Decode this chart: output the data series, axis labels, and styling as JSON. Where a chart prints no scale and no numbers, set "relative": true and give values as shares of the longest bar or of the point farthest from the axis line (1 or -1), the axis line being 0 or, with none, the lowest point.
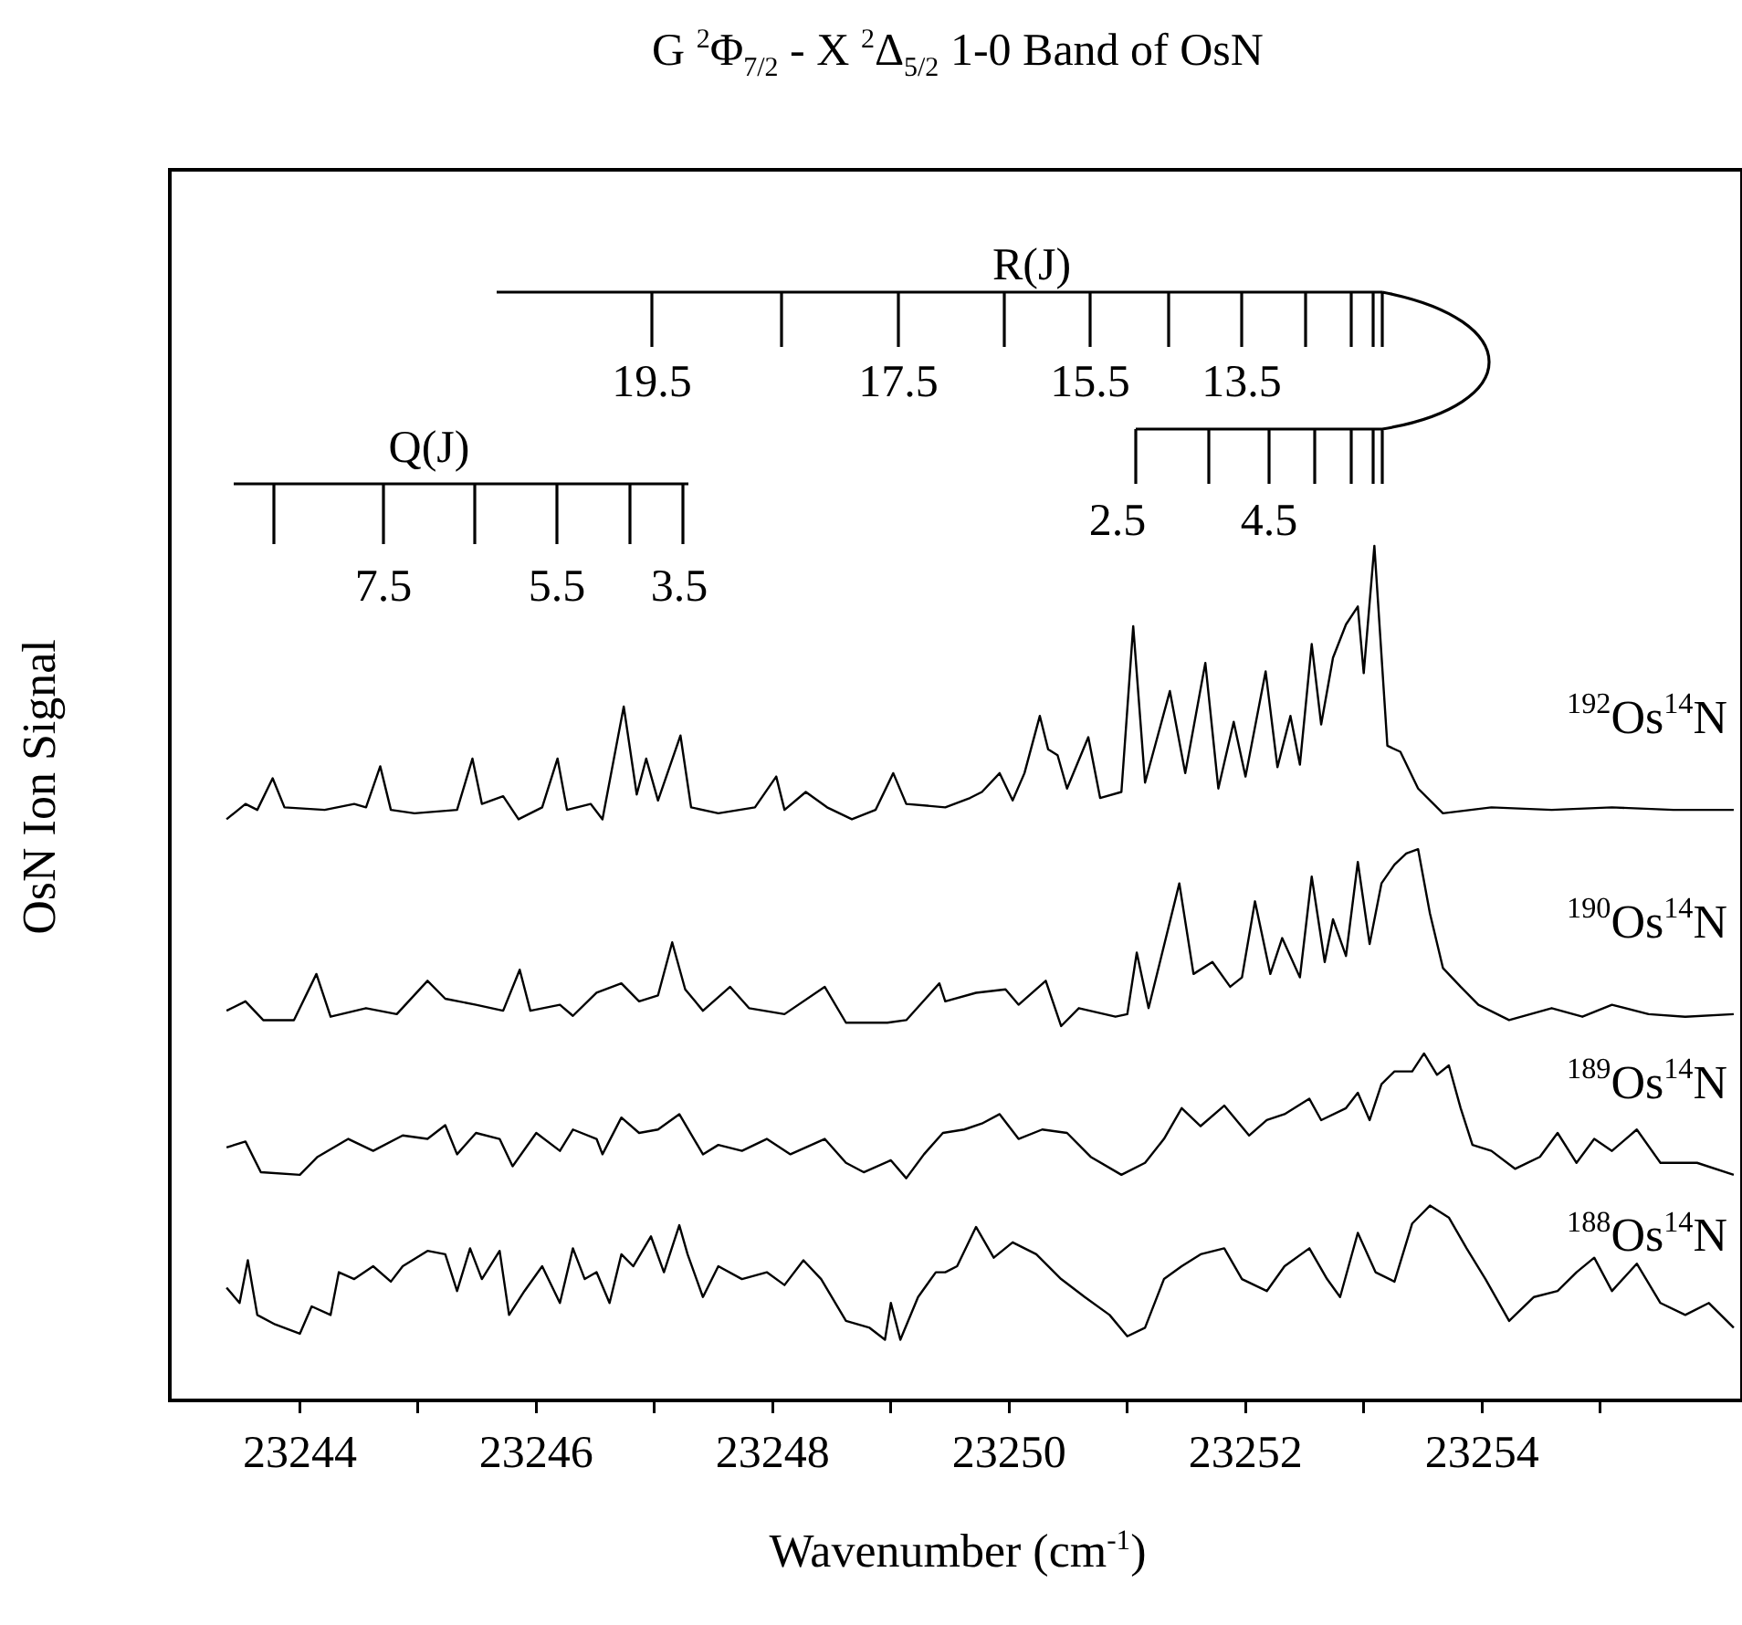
{
  "chart_data": {
    "type": "line",
    "title": "G $^{2}$Φ$_{7/2}$ - X $^{2}$Δ$_{5/2}$ 1-0 Band of OsN",
    "xlabel": "Wavenumber (cm$^{-1}$)",
    "ylabel": "OsN Ion Signal",
    "relative": true,
    "legend": false,
    "grid": false,
    "marker": "none",
    "xlim": [
      23242.9,
      23256.2
    ],
    "xticks": [
      23244,
      {
        "value": 23245,
        "label": null
      },
      23246,
      {
        "value": 23247,
        "label": null
      },
      23248,
      {
        "value": 23249,
        "label": null
      },
      23250,
      {
        "value": 23251,
        "label": null
      },
      23252,
      {
        "value": 23253,
        "label": null
      },
      23254,
      {
        "value": 23255,
        "label": null
      }
    ],
    "annotations": [
      "R(J)",
      "19.5",
      "17.5",
      "15.5",
      "13.5",
      "Q(J)",
      "2.5",
      "4.5",
      "7.5",
      "5.5",
      "3.5"
    ],
    "series": [
      {
        "name": "$^{192}$Os$^{14}$N",
        "color": "#000000",
        "x": [
          23243.38,
          23243.54,
          23243.64,
          23243.77,
          23243.87,
          23244.21,
          23244.46,
          23244.56,
          23244.68,
          23244.77,
          23244.97,
          23245.33,
          23245.46,
          23245.54,
          23245.72,
          23245.85,
          23246.05,
          23246.18,
          23246.26,
          23246.46,
          23246.56,
          23246.74,
          23246.85,
          23246.93,
          23247.03,
          23247.22,
          23247.31,
          23247.54,
          23247.85,
          23248.03,
          23248.1,
          23248.28,
          23248.46,
          23248.67,
          23248.87,
          23249.02,
          23249.13,
          23249.46,
          23249.67,
          23249.77,
          23249.92,
          23250.03,
          23250.13,
          23250.26,
          23250.33,
          23250.41,
          23250.49,
          23250.67,
          23250.77,
          23250.95,
          23251.05,
          23251.15,
          23251.36,
          23251.49,
          23251.66,
          23251.77,
          23251.9,
          23252.0,
          23252.17,
          23252.27,
          23252.38,
          23252.46,
          23252.56,
          23252.64,
          23252.74,
          23252.85,
          23252.95,
          23253.0,
          23253.09,
          23253.2,
          23253.31,
          23253.46,
          23253.67,
          23254.08,
          23254.59,
          23255.1,
          23255.62,
          23256.13
        ],
        "values": [
          0.68,
          0.698,
          0.691,
          0.728,
          0.694,
          0.691,
          0.698,
          0.694,
          0.742,
          0.691,
          0.687,
          0.691,
          0.751,
          0.698,
          0.707,
          0.68,
          0.694,
          0.751,
          0.691,
          0.698,
          0.68,
          0.812,
          0.709,
          0.751,
          0.702,
          0.778,
          0.694,
          0.687,
          0.694,
          0.73,
          0.691,
          0.712,
          0.694,
          0.68,
          0.691,
          0.734,
          0.698,
          0.694,
          0.705,
          0.712,
          0.734,
          0.702,
          0.734,
          0.801,
          0.762,
          0.755,
          0.716,
          0.776,
          0.705,
          0.712,
          0.906,
          0.723,
          0.83,
          0.734,
          0.863,
          0.716,
          0.794,
          0.73,
          0.853,
          0.741,
          0.801,
          0.744,
          0.885,
          0.791,
          0.869,
          0.908,
          0.929,
          0.851,
          1.0,
          0.766,
          0.759,
          0.716,
          0.687,
          0.694,
          0.691,
          0.694,
          0.691,
          0.691
        ]
      },
      {
        "name": "$^{190}$Os$^{14}$N",
        "color": "#000000",
        "x": [
          23243.38,
          23243.54,
          23243.69,
          23243.95,
          23244.14,
          23244.26,
          23244.56,
          23244.82,
          23245.08,
          23245.23,
          23245.49,
          23245.72,
          23245.86,
          23245.95,
          23246.2,
          23246.31,
          23246.51,
          23246.72,
          23246.87,
          23247.03,
          23247.15,
          23247.26,
          23247.41,
          23247.64,
          23247.8,
          23248.1,
          23248.44,
          23248.62,
          23248.97,
          23249.13,
          23249.41,
          23249.46,
          23249.72,
          23249.97,
          23250.08,
          23250.31,
          23250.44,
          23250.59,
          23250.9,
          23251.0,
          23251.08,
          23251.18,
          23251.44,
          23251.56,
          23251.72,
          23251.87,
          23251.97,
          23252.08,
          23252.21,
          23252.31,
          23252.46,
          23252.56,
          23252.67,
          23252.74,
          23252.85,
          23252.95,
          23253.05,
          23253.15,
          23253.26,
          23253.36,
          23253.46,
          23253.56,
          23253.67,
          23253.82,
          23253.97,
          23254.23,
          23254.59,
          23254.85,
          23255.1,
          23255.41,
          23255.72,
          23256.13
        ],
        "values": [
          0.456,
          0.467,
          0.445,
          0.445,
          0.499,
          0.449,
          0.459,
          0.452,
          0.491,
          0.47,
          0.463,
          0.456,
          0.504,
          0.456,
          0.463,
          0.45,
          0.477,
          0.488,
          0.467,
          0.474,
          0.536,
          0.481,
          0.456,
          0.484,
          0.459,
          0.452,
          0.484,
          0.442,
          0.442,
          0.445,
          0.488,
          0.467,
          0.477,
          0.481,
          0.463,
          0.491,
          0.438,
          0.459,
          0.449,
          0.452,
          0.524,
          0.459,
          0.605,
          0.499,
          0.513,
          0.484,
          0.495,
          0.584,
          0.499,
          0.541,
          0.495,
          0.613,
          0.513,
          0.563,
          0.52,
          0.63,
          0.534,
          0.605,
          0.627,
          0.64,
          0.645,
          0.57,
          0.506,
          0.484,
          0.463,
          0.445,
          0.459,
          0.449,
          0.463,
          0.452,
          0.449,
          0.452
        ]
      },
      {
        "name": "$^{189}$Os$^{14}$N",
        "color": "#000000",
        "x": [
          23243.38,
          23243.54,
          23243.67,
          23244.0,
          23244.15,
          23244.41,
          23244.62,
          23244.87,
          23245.08,
          23245.23,
          23245.33,
          23245.49,
          23245.69,
          23245.8,
          23246.0,
          23246.2,
          23246.31,
          23246.51,
          23246.56,
          23246.72,
          23246.87,
          23247.03,
          23247.21,
          23247.41,
          23247.54,
          23247.74,
          23247.95,
          23248.15,
          23248.44,
          23248.62,
          23248.77,
          23249.0,
          23249.13,
          23249.28,
          23249.44,
          23249.62,
          23249.77,
          23249.92,
          23250.08,
          23250.28,
          23250.49,
          23250.69,
          23250.95,
          23251.15,
          23251.31,
          23251.46,
          23251.62,
          23251.82,
          23252.03,
          23252.18,
          23252.33,
          23252.54,
          23252.64,
          23252.85,
          23252.95,
          23253.05,
          23253.15,
          23253.26,
          23253.41,
          23253.51,
          23253.62,
          23253.72,
          23253.82,
          23253.92,
          23254.08,
          23254.28,
          23254.49,
          23254.64,
          23254.8,
          23254.95,
          23255.1,
          23255.31,
          23255.51,
          23255.82,
          23256.13
        ],
        "values": [
          0.296,
          0.303,
          0.267,
          0.264,
          0.285,
          0.306,
          0.292,
          0.31,
          0.306,
          0.322,
          0.288,
          0.313,
          0.306,
          0.274,
          0.313,
          0.292,
          0.317,
          0.306,
          0.288,
          0.331,
          0.313,
          0.317,
          0.335,
          0.288,
          0.299,
          0.292,
          0.306,
          0.288,
          0.306,
          0.278,
          0.267,
          0.281,
          0.26,
          0.288,
          0.313,
          0.317,
          0.324,
          0.335,
          0.306,
          0.317,
          0.313,
          0.285,
          0.264,
          0.278,
          0.306,
          0.342,
          0.321,
          0.345,
          0.31,
          0.328,
          0.335,
          0.353,
          0.328,
          0.342,
          0.36,
          0.328,
          0.37,
          0.385,
          0.385,
          0.406,
          0.381,
          0.392,
          0.342,
          0.299,
          0.292,
          0.271,
          0.285,
          0.313,
          0.278,
          0.306,
          0.292,
          0.317,
          0.278,
          0.278,
          0.264
        ]
      },
      {
        "name": "$^{188}$Os$^{14}$N",
        "color": "#000000",
        "x": [
          23243.38,
          23243.49,
          23243.56,
          23243.64,
          23243.79,
          23244.0,
          23244.1,
          23244.26,
          23244.33,
          23244.46,
          23244.62,
          23244.77,
          23244.87,
          23245.08,
          23245.23,
          23245.33,
          23245.44,
          23245.54,
          23245.69,
          23245.77,
          23245.9,
          23246.05,
          23246.2,
          23246.31,
          23246.41,
          23246.51,
          23246.62,
          23246.72,
          23246.82,
          23246.97,
          23247.08,
          23247.21,
          23247.28,
          23247.41,
          23247.54,
          23247.74,
          23247.95,
          23248.1,
          23248.26,
          23248.41,
          23248.62,
          23248.82,
          23248.95,
          23249.0,
          23249.08,
          23249.23,
          23249.38,
          23249.46,
          23249.56,
          23249.72,
          23249.87,
          23250.03,
          23250.23,
          23250.44,
          23250.64,
          23250.85,
          23251.0,
          23251.15,
          23251.31,
          23251.46,
          23251.62,
          23251.82,
          23251.97,
          23252.18,
          23252.33,
          23252.54,
          23252.69,
          23252.8,
          23252.95,
          23253.1,
          23253.26,
          23253.41,
          23253.56,
          23253.72,
          23253.87,
          23254.03,
          23254.23,
          23254.44,
          23254.64,
          23254.8,
          23254.95,
          23255.1,
          23255.31,
          23255.51,
          23255.72,
          23255.92,
          23256.13
        ],
        "values": [
          0.132,
          0.114,
          0.164,
          0.1,
          0.089,
          0.078,
          0.11,
          0.1,
          0.15,
          0.142,
          0.157,
          0.139,
          0.157,
          0.175,
          0.171,
          0.128,
          0.178,
          0.142,
          0.175,
          0.1,
          0.128,
          0.157,
          0.114,
          0.178,
          0.142,
          0.15,
          0.114,
          0.171,
          0.157,
          0.192,
          0.15,
          0.205,
          0.171,
          0.121,
          0.157,
          0.142,
          0.15,
          0.135,
          0.164,
          0.142,
          0.093,
          0.085,
          0.071,
          0.114,
          0.071,
          0.121,
          0.15,
          0.15,
          0.157,
          0.203,
          0.167,
          0.185,
          0.171,
          0.142,
          0.121,
          0.1,
          0.075,
          0.085,
          0.142,
          0.157,
          0.171,
          0.178,
          0.142,
          0.128,
          0.157,
          0.178,
          0.142,
          0.121,
          0.196,
          0.15,
          0.139,
          0.207,
          0.228,
          0.214,
          0.178,
          0.142,
          0.093,
          0.121,
          0.128,
          0.15,
          0.167,
          0.128,
          0.16,
          0.114,
          0.1,
          0.114,
          0.085
        ]
      }
    ]
  }
}
